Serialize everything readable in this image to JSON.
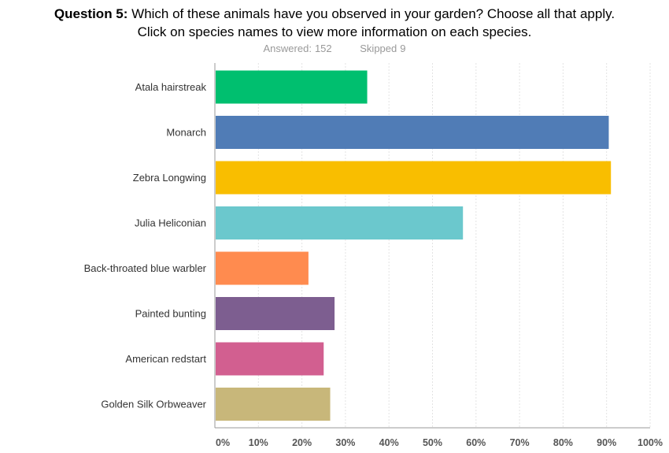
{
  "header": {
    "question_prefix": "Question 5:",
    "question_line1": " Which of these animals have you observed in your garden? Choose all that apply.",
    "question_line2": "Click on species names to view more information on each species."
  },
  "stats": {
    "answered_label": "Answered:",
    "answered_value": "152",
    "skipped_label": "Skipped",
    "skipped_value": "9"
  },
  "chart_data": {
    "type": "bar",
    "orientation": "horizontal",
    "categories": [
      "Atala hairstreak",
      "Monarch",
      "Zebra Longwing",
      "Julia Heliconian",
      "Back-throated blue warbler",
      "Painted bunting",
      "American redstart",
      "Golden Silk Orbweaver"
    ],
    "values": [
      35,
      90.5,
      91,
      57,
      21.5,
      27.5,
      25,
      26.5
    ],
    "colors": [
      "#00bf6f",
      "#507cb6",
      "#f9be00",
      "#6bc8cd",
      "#ff8b4f",
      "#7d5e90",
      "#d25f90",
      "#c8b77a"
    ],
    "xlim": [
      0,
      100
    ],
    "x_ticks": [
      "0%",
      "10%",
      "20%",
      "30%",
      "40%",
      "50%",
      "60%",
      "70%",
      "80%",
      "90%",
      "100%"
    ],
    "grid": true
  }
}
